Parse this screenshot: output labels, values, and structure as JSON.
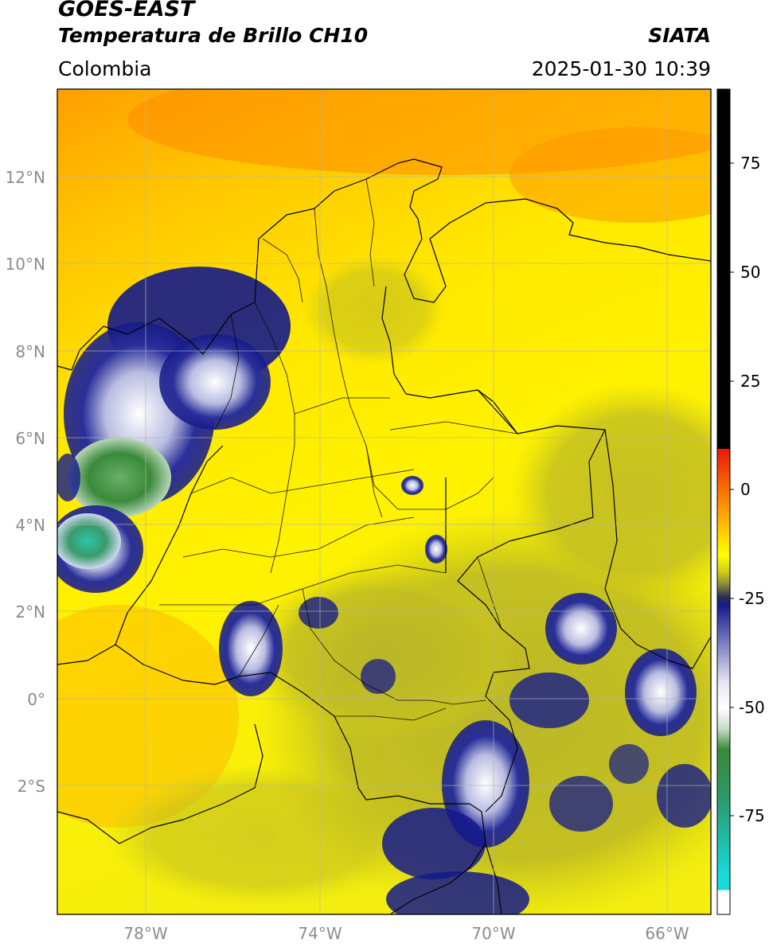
{
  "header": {
    "satellite": "GOES-EAST",
    "product": "Temperatura de Brillo CH10",
    "region": "Colombia",
    "source": "SIATA",
    "datetime": "2025-01-30 10:39"
  },
  "map": {
    "lat_labels": [
      "12°N",
      "10°N",
      "8°N",
      "6°N",
      "4°N",
      "2°N",
      "0°",
      "2°S"
    ],
    "lon_labels": [
      "78°W",
      "74°W",
      "70°W",
      "66°W"
    ],
    "gridline_color": "#b4b4b4"
  },
  "colorbar": {
    "ticks": [
      "75",
      "50",
      "25",
      "0",
      "-25",
      "-50",
      "-75"
    ],
    "colors": {
      "black": "#000000",
      "red": "#e8180b",
      "orange": "#ff9a00",
      "yellow": "#ffff00",
      "olive": "#b8b42a",
      "navy": "#141a8a",
      "white": "#ffffff",
      "green": "#3a8a3a",
      "cyan": "#19d8d8"
    }
  }
}
